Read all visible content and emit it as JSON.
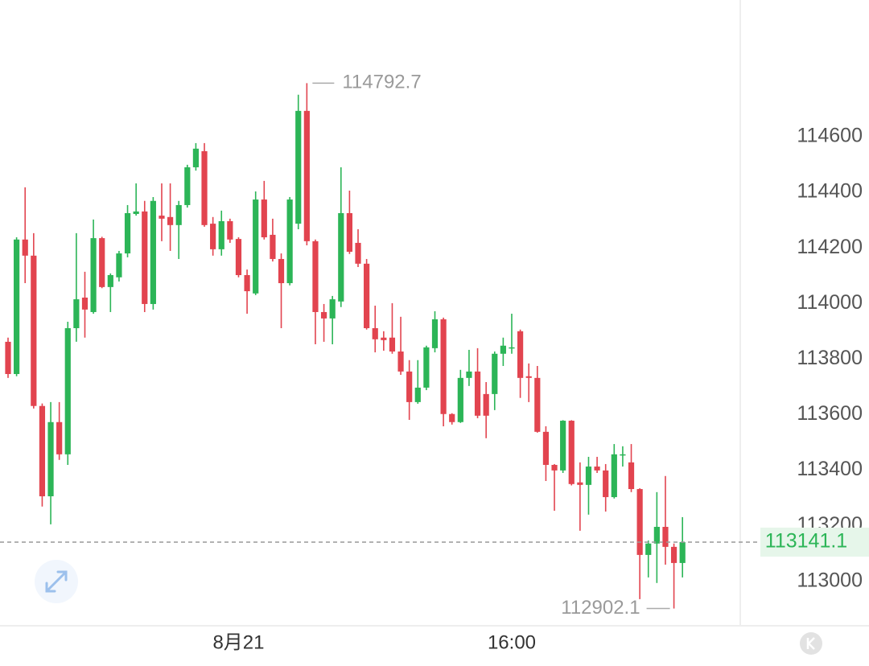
{
  "chart_data": {
    "type": "candlestick",
    "categories": [
      null,
      null,
      null,
      null,
      null,
      null,
      null,
      null,
      null,
      null,
      null,
      null,
      null,
      null,
      null,
      null,
      null,
      null,
      null,
      null,
      null,
      null,
      null,
      null,
      null,
      null,
      null,
      "8月21",
      null,
      null,
      null,
      null,
      null,
      null,
      null,
      null,
      null,
      null,
      null,
      null,
      null,
      null,
      null,
      null,
      null,
      null,
      null,
      null,
      null,
      null,
      null,
      null,
      null,
      null,
      null,
      null,
      null,
      null,
      null,
      "16:00",
      null,
      null,
      null,
      null,
      null,
      null,
      null,
      null,
      null,
      null,
      null,
      null,
      null,
      null,
      null,
      null,
      null,
      null,
      null,
      null
    ],
    "open": [
      113862,
      113746,
      114230,
      114172,
      113631,
      113306,
      113573,
      113457,
      113911,
      114021,
      113969,
      114235,
      114059,
      114094,
      114180,
      114322,
      114331,
      113998,
      114316,
      114311,
      114282,
      114354,
      114490,
      114548,
      114287,
      114195,
      114296,
      114232,
      114102,
      114036,
      114374,
      114247,
      114160,
      114073,
      114287,
      114693,
      114224,
      113969,
      113946,
      114007,
      114325,
      114218,
      114143,
      113911,
      113877,
      113877,
      113827,
      113755,
      113645,
      113697,
      113839,
      113943,
      113602,
      113573,
      113732,
      113755,
      113674,
      113674,
      113819,
      113839,
      113900,
      113738,
      113732,
      113538,
      113419,
      113399,
      113578,
      113356,
      113347,
      113413,
      113399,
      113303,
      113454,
      113428,
      113332,
      113095,
      113136,
      113196,
      113124,
      113066
    ],
    "high": [
      113877,
      114238,
      114418,
      114253,
      113640,
      113645,
      113645,
      113934,
      114253,
      114114,
      114302,
      114240,
      114108,
      114189,
      114354,
      114432,
      114369,
      114383,
      114432,
      114432,
      114369,
      114499,
      114577,
      114577,
      114311,
      114334,
      114305,
      114238,
      114122,
      114403,
      114441,
      114305,
      114180,
      114383,
      114751,
      114792.7,
      114230,
      113998,
      114027,
      114490,
      114406,
      114267,
      114160,
      113992,
      113900,
      114001,
      113952,
      113796,
      113796,
      113848,
      113972,
      113949,
      113605,
      113761,
      113833,
      113839,
      113717,
      113827,
      113877,
      113963,
      113906,
      113784,
      113775,
      113558,
      113422,
      113580,
      113580,
      113428,
      113448,
      113448,
      113422,
      113494,
      113486,
      113494,
      113335,
      113147,
      113321,
      113379,
      113136,
      113231
    ],
    "low": [
      113732,
      113738,
      114073,
      113622,
      113269,
      113205,
      113437,
      113419,
      113862,
      113877,
      113963,
      114055,
      113969,
      114079,
      114166,
      114316,
      113969,
      113978,
      114224,
      114189,
      114160,
      114345,
      114478,
      114276,
      114172,
      114172,
      114218,
      114094,
      113963,
      114030,
      114230,
      114151,
      113911,
      114065,
      114267,
      114209,
      113853,
      113862,
      113853,
      113987,
      114178,
      114131,
      113906,
      113824,
      113830,
      113819,
      113743,
      113581,
      113639,
      113688,
      113824,
      113558,
      113564,
      113570,
      113703,
      113587,
      113515,
      113616,
      113775,
      113819,
      113660,
      113645,
      113535,
      113361,
      113254,
      113390,
      113345,
      113182,
      113240,
      113390,
      113251,
      113298,
      113413,
      113321,
      112936,
      113014,
      112994,
      113060,
      112902.1,
      113014
    ],
    "close": [
      113746,
      114230,
      114172,
      113631,
      113306,
      113573,
      113457,
      113911,
      114015,
      113978,
      114235,
      114059,
      114102,
      114180,
      114325,
      114331,
      113998,
      114369,
      114305,
      114282,
      114354,
      114490,
      114557,
      114282,
      114195,
      114296,
      114230,
      114102,
      114044,
      114374,
      114238,
      114160,
      114073,
      114374,
      114693,
      114224,
      113969,
      113946,
      114015,
      114325,
      114186,
      114143,
      113911,
      113871,
      113868,
      113827,
      113755,
      113645,
      113697,
      113842,
      113943,
      113602,
      113573,
      113732,
      113755,
      113596,
      113596,
      113819,
      113848,
      113842,
      113732,
      113732,
      113538,
      113419,
      113399,
      113578,
      113350,
      113347,
      113413,
      113399,
      113303,
      113457,
      113457,
      113332,
      113095,
      113136,
      113196,
      113124,
      113066,
      113141.1
    ],
    "up_color": "#2cb557",
    "down_color": "#e2444f",
    "ylim": [
      112840,
      115092
    ],
    "yticks": [
      113000,
      113200,
      113400,
      113600,
      113800,
      114000,
      114200,
      114400,
      114600
    ]
  }
}
